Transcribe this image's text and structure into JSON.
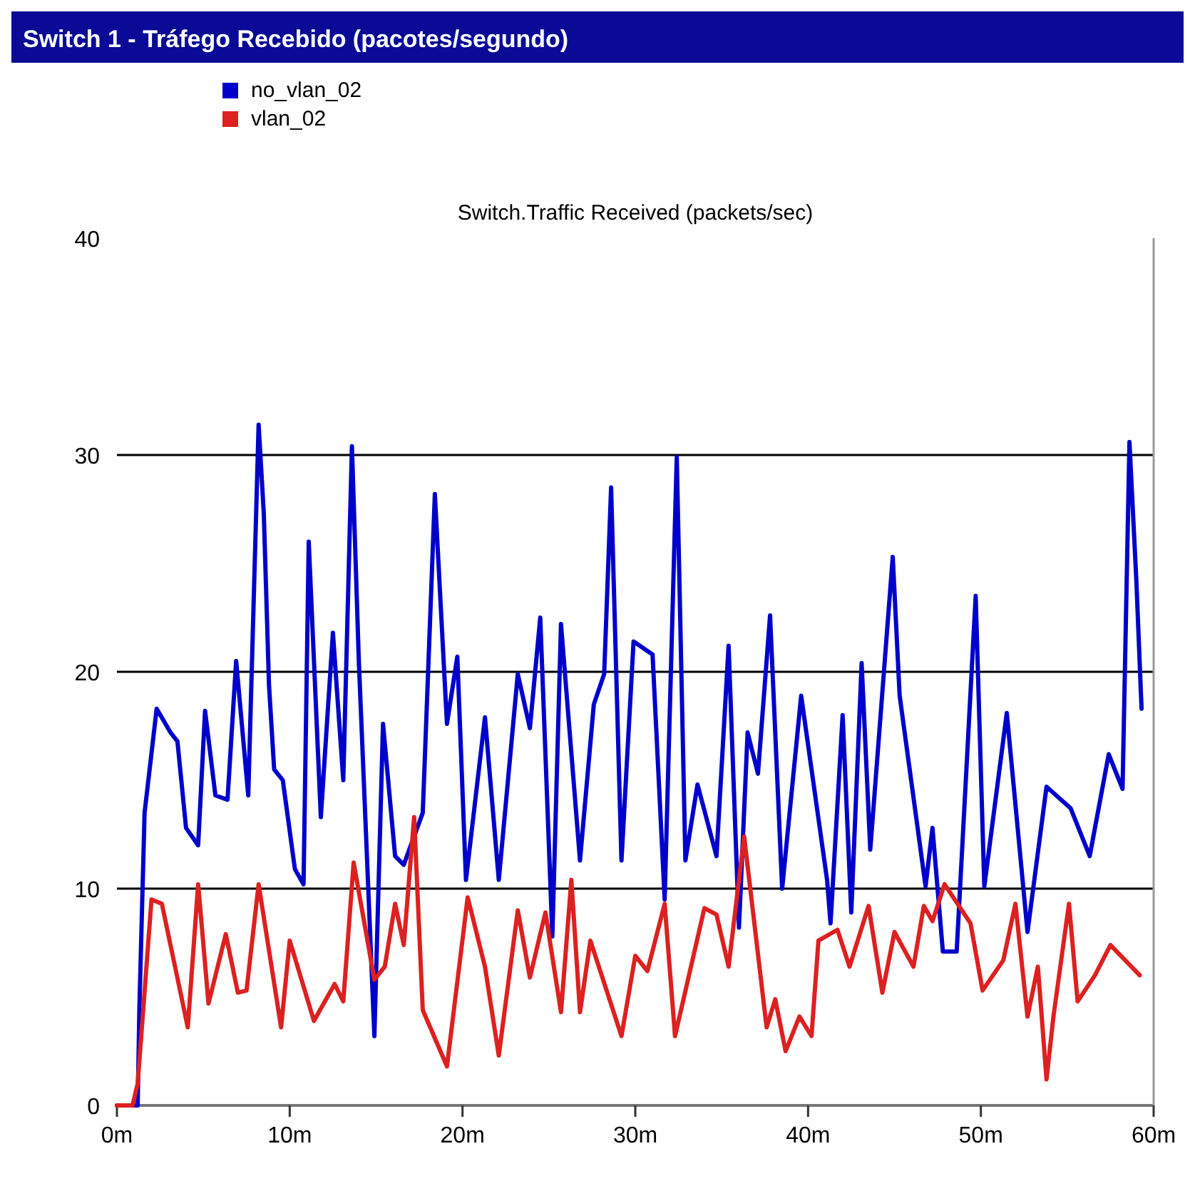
{
  "chart_data": {
    "type": "line",
    "title": "Switch 1 - Tráfego Recebido (pacotes/segundo)",
    "subtitle": "Switch.Traffic Received (packets/sec)",
    "xlim": [
      0,
      60
    ],
    "ylim": [
      0,
      40
    ],
    "xticks": [
      {
        "value": 0,
        "label": "0m"
      },
      {
        "value": 10,
        "label": "10m"
      },
      {
        "value": 20,
        "label": "20m"
      },
      {
        "value": 30,
        "label": "30m"
      },
      {
        "value": 40,
        "label": "40m"
      },
      {
        "value": 50,
        "label": "50m"
      },
      {
        "value": 60,
        "label": "60m"
      }
    ],
    "yticks": [
      0,
      10,
      20,
      30,
      40
    ],
    "grid": "y",
    "legend": "top left",
    "line_style": "solid",
    "series": [
      {
        "name": "no_vlan_02",
        "color": "#0000cc",
        "x": [
          0,
          1.2,
          1.3,
          1.6,
          2.3,
          3.1,
          3.5,
          4.0,
          4.7,
          5.1,
          5.7,
          6.4,
          6.9,
          7.6,
          8.2,
          8.5,
          8.8,
          9.1,
          9.6,
          10.3,
          10.8,
          11.1,
          11.8,
          12.5,
          13.1,
          13.6,
          14.0,
          14.9,
          15.4,
          16.1,
          16.6,
          17.7,
          18.4,
          19.1,
          19.7,
          20.2,
          21.3,
          22.1,
          23.2,
          23.9,
          24.5,
          25.2,
          25.7,
          26.8,
          27.6,
          28.2,
          28.6,
          29.2,
          29.9,
          31.0,
          31.7,
          32.4,
          32.9,
          33.6,
          34.7,
          35.4,
          36.0,
          36.5,
          37.1,
          37.8,
          38.5,
          39.6,
          41.1,
          41.3,
          42.0,
          42.5,
          43.1,
          43.6,
          44.9,
          45.3,
          46.8,
          47.2,
          47.8,
          48.6,
          49.7,
          50.2,
          51.5,
          52.7,
          53.8,
          55.2,
          56.3,
          57.4,
          58.2,
          58.6,
          59.0,
          59.3
        ],
        "values": [
          0,
          0,
          4.5,
          13.5,
          18.3,
          17.2,
          16.8,
          12.8,
          12,
          18.2,
          14.3,
          14.1,
          20.5,
          14.3,
          31.4,
          27.3,
          19.4,
          15.5,
          15,
          10.9,
          10.2,
          26,
          13.3,
          21.8,
          15,
          30.4,
          20.5,
          3.2,
          17.6,
          11.5,
          11.1,
          13.5,
          28.2,
          17.6,
          20.7,
          10.4,
          17.9,
          10.4,
          19.9,
          17.4,
          22.5,
          7.8,
          22.2,
          11.3,
          18.5,
          19.9,
          28.5,
          11.3,
          21.4,
          20.8,
          9.5,
          29.9,
          11.3,
          14.8,
          11.5,
          21.2,
          8.2,
          17.2,
          15.3,
          22.6,
          10,
          18.9,
          10.4,
          8.4,
          18,
          8.9,
          20.4,
          11.8,
          25.3,
          18.9,
          10.1,
          12.8,
          7.1,
          7.1,
          23.5,
          10.1,
          18.1,
          8,
          14.7,
          13.7,
          11.5,
          16.2,
          14.6,
          30.6,
          24.2,
          18.3
        ]
      },
      {
        "name": "vlan_02",
        "color": "#dd2020",
        "x": [
          0,
          0.9,
          1.2,
          2.0,
          2.6,
          4.1,
          4.7,
          5.3,
          6.3,
          7.0,
          7.5,
          8.2,
          9.5,
          10.0,
          11.4,
          12.6,
          13.1,
          13.7,
          14.9,
          15.5,
          16.1,
          16.6,
          17.2,
          17.7,
          19.1,
          20.3,
          21.3,
          22.1,
          23.2,
          23.9,
          24.8,
          25.7,
          26.3,
          26.8,
          27.4,
          29.2,
          30.0,
          30.7,
          31.7,
          32.3,
          34.0,
          34.7,
          35.4,
          36.3,
          37.6,
          38.1,
          38.7,
          39.5,
          40.2,
          40.6,
          41.7,
          42.4,
          43.5,
          44.3,
          45.0,
          46.1,
          46.7,
          47.2,
          47.9,
          49.4,
          50.1,
          51.3,
          52.0,
          52.7,
          53.3,
          53.8,
          54.2,
          55.1,
          55.6,
          56.6,
          57.5,
          59.2
        ],
        "values": [
          0,
          0,
          1,
          9.5,
          9.3,
          3.6,
          10.2,
          4.7,
          7.9,
          5.2,
          5.3,
          10.2,
          3.6,
          7.6,
          3.9,
          5.6,
          4.8,
          11.2,
          5.8,
          6.4,
          9.3,
          7.4,
          13.3,
          4.4,
          1.8,
          9.6,
          6.4,
          2.3,
          9,
          5.9,
          8.9,
          4.3,
          10.4,
          4.3,
          7.6,
          3.2,
          6.9,
          6.2,
          9.3,
          3.2,
          9.1,
          8.8,
          6.4,
          12.4,
          3.6,
          4.9,
          2.5,
          4.1,
          3.2,
          7.6,
          8.1,
          6.4,
          9.2,
          5.2,
          8,
          6.4,
          9.2,
          8.5,
          10.2,
          8.4,
          5.3,
          6.7,
          9.3,
          4.1,
          6.4,
          1.2,
          4.1,
          9.3,
          4.8,
          6,
          7.4,
          6
        ]
      }
    ]
  }
}
